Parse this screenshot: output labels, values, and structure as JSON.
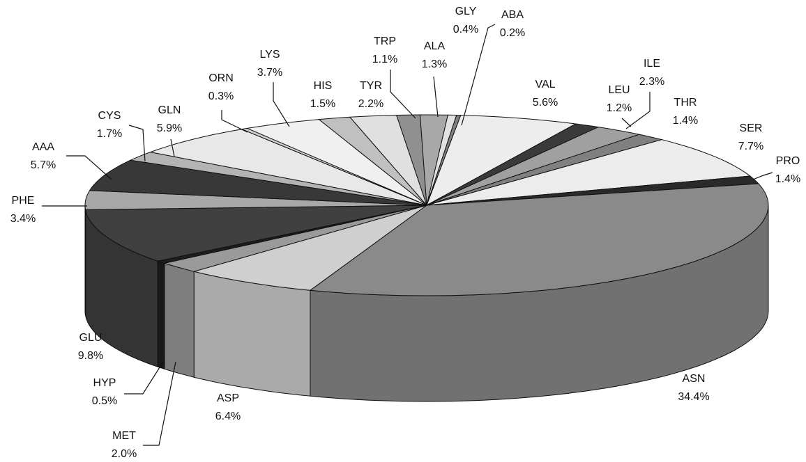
{
  "chart_data": {
    "type": "pie3d",
    "categories": [
      "ABA",
      "VAL",
      "LEU",
      "ILE",
      "THR",
      "SER",
      "PRO",
      "ASN",
      "ASP",
      "MET",
      "HYP",
      "GLU",
      "PHE",
      "AAA",
      "CYS",
      "GLN",
      "ORN",
      "LYS",
      "HIS",
      "TYR",
      "TRP",
      "ALA",
      "GLY"
    ],
    "values": [
      0.2,
      5.6,
      1.2,
      2.3,
      1.4,
      7.7,
      1.4,
      34.4,
      6.4,
      2.0,
      0.5,
      9.8,
      3.4,
      5.7,
      1.7,
      5.9,
      0.3,
      3.7,
      1.5,
      2.2,
      1.1,
      1.3,
      0.4
    ],
    "value_labels": [
      "0.2%",
      "5.6%",
      "1.2%",
      "2.3%",
      "1.4%",
      "7.7%",
      "1.4%",
      "34.4%",
      "6.4%",
      "2.0%",
      "0.5%",
      "9.8%",
      "3.4%",
      "5.7%",
      "1.7%",
      "5.9%",
      "0.3%",
      "3.7%",
      "1.5%",
      "2.2%",
      "1.1%",
      "1.3%",
      "0.4%"
    ],
    "colors": [
      "#808080",
      "#ededed",
      "#3a3a3a",
      "#a0a0a0",
      "#808080",
      "#ececec",
      "#2a2a2a",
      "#8a8a8a",
      "#cfcfcf",
      "#9a9a9a",
      "#1e1e1e",
      "#404040",
      "#a8a8a8",
      "#383838",
      "#b4b4b4",
      "#e8e8e8",
      "#d0d0d0",
      "#f0f0f0",
      "#c0c0c0",
      "#e0e0e0",
      "#909090",
      "#a8a8a8",
      "#e2e2e2"
    ]
  }
}
